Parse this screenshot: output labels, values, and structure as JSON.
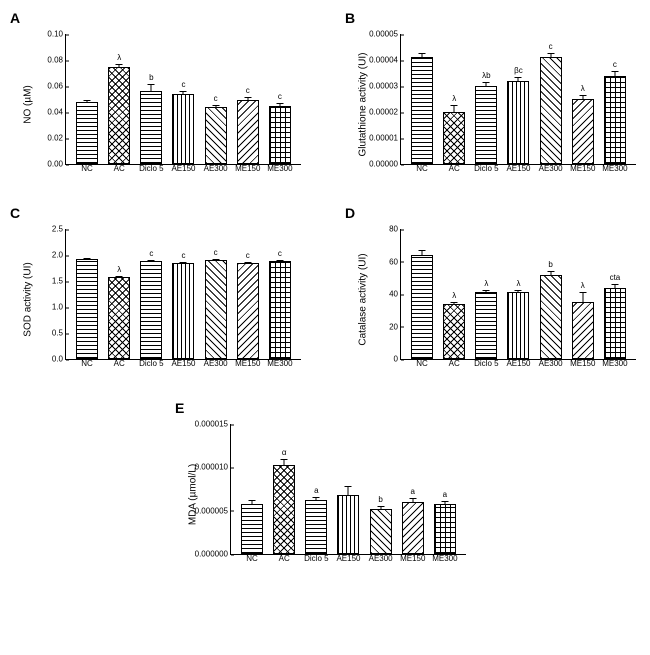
{
  "patterns": [
    "p-hlines",
    "p-check",
    "p-hlines2",
    "p-vlines",
    "p-diag1",
    "p-diag2",
    "p-grid"
  ],
  "categories": [
    "NC",
    "AC",
    "Diclo 5",
    "AE150",
    "AE300",
    "ME150",
    "ME300"
  ],
  "charts": {
    "A": {
      "label": "A",
      "ylabel": "NO (µM)",
      "ymax": 0.1,
      "yticks": [
        "0.00",
        "0.02",
        "0.04",
        "0.06",
        "0.08",
        "0.10"
      ],
      "values": [
        0.048,
        0.075,
        0.056,
        0.054,
        0.044,
        0.049,
        0.045
      ],
      "errors": [
        0.002,
        0.003,
        0.006,
        0.003,
        0.002,
        0.003,
        0.003
      ],
      "sig": [
        "",
        "λ",
        "b",
        "c",
        "c",
        "c",
        "c"
      ]
    },
    "B": {
      "label": "B",
      "ylabel": "Glutathione activity (UI)",
      "ymax": 5e-05,
      "yticks": [
        "0.00000",
        "0.00001",
        "0.00002",
        "0.00003",
        "0.00004",
        "0.00005"
      ],
      "values": [
        4.1e-05,
        2e-05,
        3e-05,
        3.2e-05,
        4.1e-05,
        2.5e-05,
        3.4e-05
      ],
      "errors": [
        2e-06,
        3e-06,
        2e-06,
        2e-06,
        2e-06,
        2e-06,
        2e-06
      ],
      "sig": [
        "",
        "λ",
        "λb",
        "βc",
        "c",
        "λ",
        "c"
      ]
    },
    "C": {
      "label": "C",
      "ylabel": "SOD activity (UI)",
      "ymax": 2.5,
      "yticks": [
        "0.0",
        "0.5",
        "1.0",
        "1.5",
        "2.0",
        "2.5"
      ],
      "values": [
        1.92,
        1.58,
        1.88,
        1.85,
        1.9,
        1.85,
        1.88
      ],
      "errors": [
        0.04,
        0.04,
        0.04,
        0.04,
        0.04,
        0.04,
        0.04
      ],
      "sig": [
        "",
        "λ",
        "c",
        "c",
        "c",
        "c",
        "c"
      ]
    },
    "D": {
      "label": "D",
      "ylabel": "Catalase activity (UI)",
      "ymax": 80,
      "yticks": [
        "0",
        "20",
        "40",
        "60",
        "80"
      ],
      "values": [
        64,
        34,
        41,
        41,
        52,
        35,
        44
      ],
      "errors": [
        4,
        2,
        2,
        2,
        3,
        7,
        3
      ],
      "sig": [
        "",
        "λ",
        "λ",
        "λ",
        "b",
        "λ",
        "cta"
      ]
    },
    "E": {
      "label": "E",
      "ylabel": "MDA (µmol/L)",
      "ymax": 1.5e-05,
      "yticks": [
        "0.000000",
        "0.000005",
        "0.000010",
        "0.000015"
      ],
      "values": [
        5.8e-06,
        1.03e-05,
        6.2e-06,
        6.8e-06,
        5.2e-06,
        6e-06,
        5.8e-06
      ],
      "errors": [
        5e-07,
        8e-07,
        5e-07,
        1.2e-06,
        4e-07,
        6e-07,
        4e-07
      ],
      "sig": [
        "",
        "α",
        "a",
        "",
        "b",
        "a",
        "a"
      ]
    }
  }
}
